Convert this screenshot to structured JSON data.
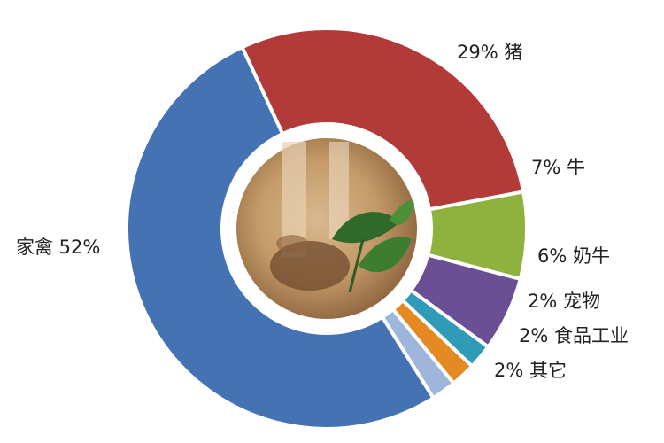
{
  "chart_data": {
    "type": "pie",
    "donut": true,
    "title": "",
    "slices": [
      {
        "label": "猪",
        "value": 29,
        "display": "29%",
        "color": "#b23b3a"
      },
      {
        "label": "牛",
        "value": 7,
        "display": "7%",
        "color": "#8fb23f"
      },
      {
        "label": "奶牛",
        "value": 6,
        "display": "6%",
        "color": "#6a4f94"
      },
      {
        "label": "宠物",
        "value": 2,
        "display": "2%",
        "color": "#2f9bb6"
      },
      {
        "label": "食品工业",
        "value": 2,
        "display": "2%",
        "color": "#e58a22"
      },
      {
        "label": "其它",
        "value": 2,
        "display": "2%",
        "color": "#9fb6dc"
      },
      {
        "label": "家禽",
        "value": 52,
        "display": "52%",
        "color": "#4472b3"
      }
    ],
    "center_image": "soil-and-seedling-photo"
  }
}
